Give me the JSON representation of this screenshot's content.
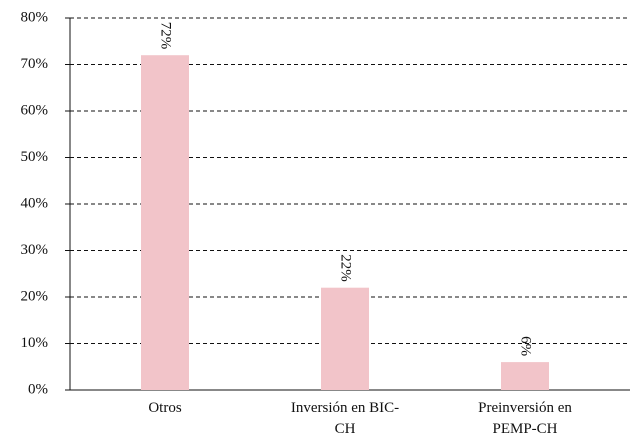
{
  "chart_data": {
    "type": "bar",
    "categories": [
      "Otros",
      "Inversión en BIC-CH",
      "Preinversión en PEMP-CH"
    ],
    "values": [
      72,
      22,
      6
    ],
    "value_labels": [
      "72%",
      "22%",
      "6%"
    ],
    "color": "#f2c4c9",
    "ylim": [
      0,
      80
    ],
    "yticks": [
      {
        "value": 0,
        "label": "0%"
      },
      {
        "value": 10,
        "label": "10%"
      },
      {
        "value": 20,
        "label": "20%"
      },
      {
        "value": 30,
        "label": "30%"
      },
      {
        "value": 40,
        "label": "40%"
      },
      {
        "value": 50,
        "label": "50%"
      },
      {
        "value": 60,
        "label": "60%"
      },
      {
        "value": 70,
        "label": "70%"
      },
      {
        "value": 80,
        "label": "80%"
      }
    ],
    "grid": true
  }
}
